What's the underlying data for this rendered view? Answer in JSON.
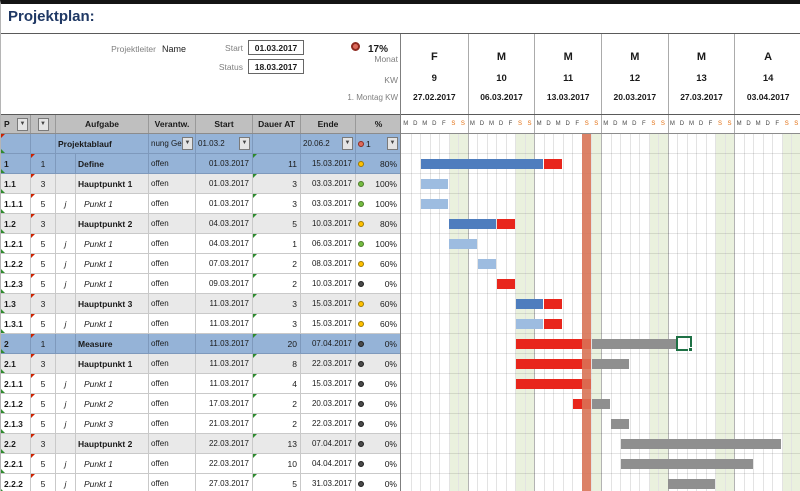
{
  "title": "Projektplan:",
  "meta": {
    "projektleiter_label": "Projektleiter",
    "projektleiter_value": "Name",
    "start_label": "Start",
    "start_value": "01.03.2017",
    "status_label": "Status",
    "status_value": "18.03.2017",
    "progress_value": "17%"
  },
  "timeline": {
    "monat_label": "Monat",
    "kw_label": "KW",
    "montag_label": "1. Montag KW",
    "day_letters": [
      "M",
      "D",
      "M",
      "D",
      "F",
      "S",
      "S"
    ],
    "weeks": [
      {
        "month": "F",
        "kw": "9",
        "monday": "27.02.2017"
      },
      {
        "month": "M",
        "kw": "10",
        "monday": "06.03.2017"
      },
      {
        "month": "M",
        "kw": "11",
        "monday": "13.03.2017"
      },
      {
        "month": "M",
        "kw": "12",
        "monday": "20.03.2017"
      },
      {
        "month": "M",
        "kw": "13",
        "monday": "27.03.2017"
      },
      {
        "month": "A",
        "kw": "14",
        "monday": "03.04.2017"
      }
    ],
    "today_day_index": 19
  },
  "table": {
    "headers": {
      "p": "P",
      "aufgabe": "Aufgabe",
      "verantw": "Verantw.",
      "start": "Start",
      "dauer": "Dauer AT",
      "ende": "Ende",
      "pct": "%"
    },
    "filter_row": {
      "aufgabe": "Projektablauf",
      "verantw": "nung Ge",
      "start": "01.03.2",
      "dauer": "",
      "ende": "20.06.2",
      "pct": "1",
      "circle": "red"
    },
    "rows": [
      {
        "id": "1",
        "lvl": "1",
        "j": "",
        "task": "Define",
        "status": "offen",
        "start": "01.03.2017",
        "dauer": "11",
        "ende": "15.03.2017",
        "pct": "80%",
        "circle": "yellow",
        "type": "phase",
        "bars": [
          [
            2,
            13,
            "blue"
          ],
          [
            15,
            2,
            "red"
          ]
        ]
      },
      {
        "id": "1.1",
        "lvl": "3",
        "j": "",
        "task": "Hauptpunkt 1",
        "status": "offen",
        "start": "01.03.2017",
        "dauer": "3",
        "ende": "03.03.2017",
        "pct": "100%",
        "circle": "green",
        "type": "haupt",
        "bars": [
          [
            2,
            3,
            "lightblue"
          ]
        ]
      },
      {
        "id": "1.1.1",
        "lvl": "5",
        "j": "j",
        "task": "Punkt 1",
        "status": "offen",
        "start": "01.03.2017",
        "dauer": "3",
        "ende": "03.03.2017",
        "pct": "100%",
        "circle": "green",
        "type": "punkt",
        "bars": [
          [
            2,
            3,
            "lightblue"
          ]
        ]
      },
      {
        "id": "1.2",
        "lvl": "3",
        "j": "",
        "task": "Hauptpunkt 2",
        "status": "offen",
        "start": "04.03.2017",
        "dauer": "5",
        "ende": "10.03.2017",
        "pct": "80%",
        "circle": "yellow",
        "type": "haupt",
        "bars": [
          [
            5,
            5,
            "blue"
          ],
          [
            10,
            2,
            "red"
          ]
        ]
      },
      {
        "id": "1.2.1",
        "lvl": "5",
        "j": "j",
        "task": "Punkt 1",
        "status": "offen",
        "start": "04.03.2017",
        "dauer": "1",
        "ende": "06.03.2017",
        "pct": "100%",
        "circle": "green",
        "type": "punkt",
        "bars": [
          [
            5,
            3,
            "lightblue"
          ]
        ]
      },
      {
        "id": "1.2.2",
        "lvl": "5",
        "j": "j",
        "task": "Punkt 1",
        "status": "offen",
        "start": "07.03.2017",
        "dauer": "2",
        "ende": "08.03.2017",
        "pct": "60%",
        "circle": "yellow",
        "type": "punkt",
        "bars": [
          [
            8,
            2,
            "lightblue"
          ]
        ]
      },
      {
        "id": "1.2.3",
        "lvl": "5",
        "j": "j",
        "task": "Punkt 1",
        "status": "offen",
        "start": "09.03.2017",
        "dauer": "2",
        "ende": "10.03.2017",
        "pct": "0%",
        "circle": "dark",
        "type": "punkt",
        "bars": [
          [
            10,
            2,
            "red"
          ]
        ]
      },
      {
        "id": "1.3",
        "lvl": "3",
        "j": "",
        "task": "Hauptpunkt 3",
        "status": "offen",
        "start": "11.03.2017",
        "dauer": "3",
        "ende": "15.03.2017",
        "pct": "60%",
        "circle": "yellow",
        "type": "haupt",
        "bars": [
          [
            12,
            3,
            "blue"
          ],
          [
            15,
            2,
            "red"
          ]
        ]
      },
      {
        "id": "1.3.1",
        "lvl": "5",
        "j": "j",
        "task": "Punkt 1",
        "status": "offen",
        "start": "11.03.2017",
        "dauer": "3",
        "ende": "15.03.2017",
        "pct": "60%",
        "circle": "yellow",
        "type": "punkt",
        "bars": [
          [
            12,
            3,
            "lightblue"
          ],
          [
            15,
            2,
            "red"
          ]
        ]
      },
      {
        "id": "2",
        "lvl": "1",
        "j": "",
        "task": "Measure",
        "status": "offen",
        "start": "11.03.2017",
        "dauer": "20",
        "ende": "07.04.2017",
        "pct": "0%",
        "circle": "dark",
        "type": "phase",
        "bars": [
          [
            12,
            8,
            "red"
          ],
          [
            20,
            9,
            "gray"
          ]
        ]
      },
      {
        "id": "2.1",
        "lvl": "3",
        "j": "",
        "task": "Hauptpunkt 1",
        "status": "offen",
        "start": "11.03.2017",
        "dauer": "8",
        "ende": "22.03.2017",
        "pct": "0%",
        "circle": "dark",
        "type": "haupt",
        "bars": [
          [
            12,
            8,
            "red"
          ],
          [
            20,
            4,
            "gray"
          ]
        ]
      },
      {
        "id": "2.1.1",
        "lvl": "5",
        "j": "j",
        "task": "Punkt 1",
        "status": "offen",
        "start": "11.03.2017",
        "dauer": "4",
        "ende": "15.03.2017",
        "pct": "0%",
        "circle": "dark",
        "type": "punkt",
        "bars": [
          [
            12,
            8,
            "red"
          ]
        ]
      },
      {
        "id": "2.1.2",
        "lvl": "5",
        "j": "j",
        "task": "Punkt 2",
        "status": "offen",
        "start": "17.03.2017",
        "dauer": "2",
        "ende": "20.03.2017",
        "pct": "0%",
        "circle": "dark",
        "type": "punkt",
        "bars": [
          [
            18,
            2,
            "red"
          ],
          [
            20,
            2,
            "gray"
          ]
        ]
      },
      {
        "id": "2.1.3",
        "lvl": "5",
        "j": "j",
        "task": "Punkt 3",
        "status": "offen",
        "start": "21.03.2017",
        "dauer": "2",
        "ende": "22.03.2017",
        "pct": "0%",
        "circle": "dark",
        "type": "punkt",
        "bars": [
          [
            22,
            2,
            "gray"
          ]
        ]
      },
      {
        "id": "2.2",
        "lvl": "3",
        "j": "",
        "task": "Hauptpunkt 2",
        "status": "offen",
        "start": "22.03.2017",
        "dauer": "13",
        "ende": "07.04.2017",
        "pct": "0%",
        "circle": "dark",
        "type": "haupt",
        "bars": [
          [
            23,
            17,
            "gray"
          ]
        ]
      },
      {
        "id": "2.2.1",
        "lvl": "5",
        "j": "j",
        "task": "Punkt 1",
        "status": "offen",
        "start": "22.03.2017",
        "dauer": "10",
        "ende": "04.04.2017",
        "pct": "0%",
        "circle": "dark",
        "type": "punkt",
        "bars": [
          [
            23,
            14,
            "gray"
          ]
        ]
      },
      {
        "id": "2.2.2",
        "lvl": "5",
        "j": "j",
        "task": "Punkt 1",
        "status": "offen",
        "start": "27.03.2017",
        "dauer": "5",
        "ende": "31.03.2017",
        "pct": "0%",
        "circle": "dark",
        "type": "punkt",
        "bars": [
          [
            28,
            5,
            "gray"
          ]
        ]
      }
    ]
  },
  "cursor": {
    "row_index": 9,
    "day_index": 29
  },
  "colors": {
    "accent_blue": "#95B3D7",
    "bar_blue": "#4E7DBE",
    "bar_lightblue": "#9DBCE0",
    "bar_red": "#E8261C",
    "bar_gray": "#8F8F8F",
    "today_line": "#DA7257",
    "weekend": "#EAF1DE",
    "circle_red": "#DD6A5B",
    "circle_yellow": "#FFC000",
    "circle_green": "#76BC43",
    "circle_dark": "#4A4A4A"
  }
}
